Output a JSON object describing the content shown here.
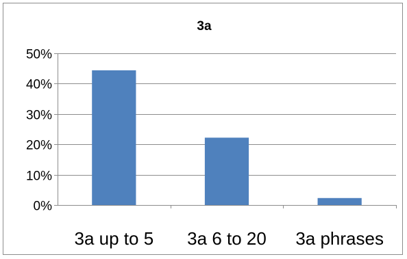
{
  "chart_data": {
    "type": "bar",
    "title": "3a",
    "xlabel": "",
    "ylabel": "",
    "categories": [
      "3a up to 5",
      "3a 6 to 20",
      "3a phrases"
    ],
    "values": [
      0.444,
      0.222,
      0.023
    ],
    "ylim": [
      0,
      0.5
    ],
    "yticks": [
      0,
      0.1,
      0.2,
      0.3,
      0.4,
      0.5
    ],
    "ytick_labels": [
      "0%",
      "10%",
      "20%",
      "30%",
      "40%",
      "50%"
    ],
    "grid": true,
    "legend": "none",
    "bar_color": "#4f81bd"
  }
}
